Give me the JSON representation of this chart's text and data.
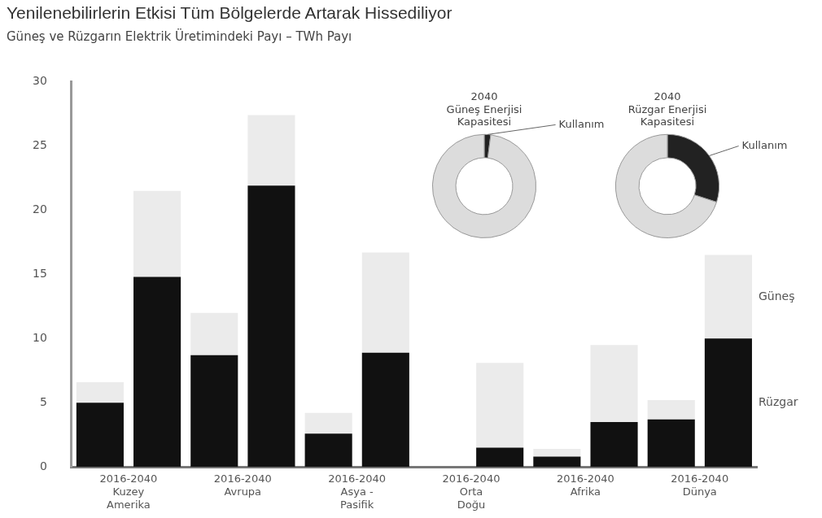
{
  "chart_data": [
    {
      "type": "bar",
      "title": "Yenilenebilirlerin Etkisi Tüm Bölgelerde Artarak Hissediliyor",
      "subtitle": "Güneş ve Rüzgarın Elektrik Üretimindeki Payı – TWh Payı",
      "categories": [
        "2016-2040\nKuzey\nAmerika",
        null,
        "2016-2040\nAvrupa",
        null,
        "2016-2040\nAsya -\nPasifik",
        null,
        "2016-2040\nOrta\nDoğu",
        null,
        "2016-2040\nAfrika",
        null,
        "2016-2040\nDünya",
        null
      ],
      "stacked": true,
      "series": [
        {
          "name": "Rüzgar",
          "color": "#111111",
          "values": [
            5.0,
            14.8,
            8.7,
            21.9,
            2.6,
            8.9,
            0,
            1.5,
            0.8,
            3.5,
            3.7,
            10.0
          ]
        },
        {
          "name": "Güneş",
          "color": "#ebebeb",
          "values": [
            1.6,
            6.7,
            3.3,
            5.5,
            1.6,
            7.8,
            0,
            6.6,
            0.6,
            6.0,
            1.5,
            6.5
          ]
        }
      ],
      "ylim": [
        0,
        30
      ],
      "yticks": [
        0,
        5,
        10,
        15,
        20,
        25,
        30
      ],
      "grid": false,
      "legend": "right"
    },
    {
      "type": "donut",
      "title": "2040\nGüneş Enerjisi\nKapasitesi",
      "categories": [
        "Kullanım",
        null
      ],
      "values": [
        2,
        98
      ],
      "colors": [
        "#222222",
        "#dcdcdc"
      ]
    },
    {
      "type": "donut",
      "title": "2040\nRüzgar Enerjisi\nKapasitesi",
      "categories": [
        "Kullanım",
        null
      ],
      "values": [
        30,
        70
      ],
      "colors": [
        "#222222",
        "#dcdcdc"
      ]
    }
  ]
}
